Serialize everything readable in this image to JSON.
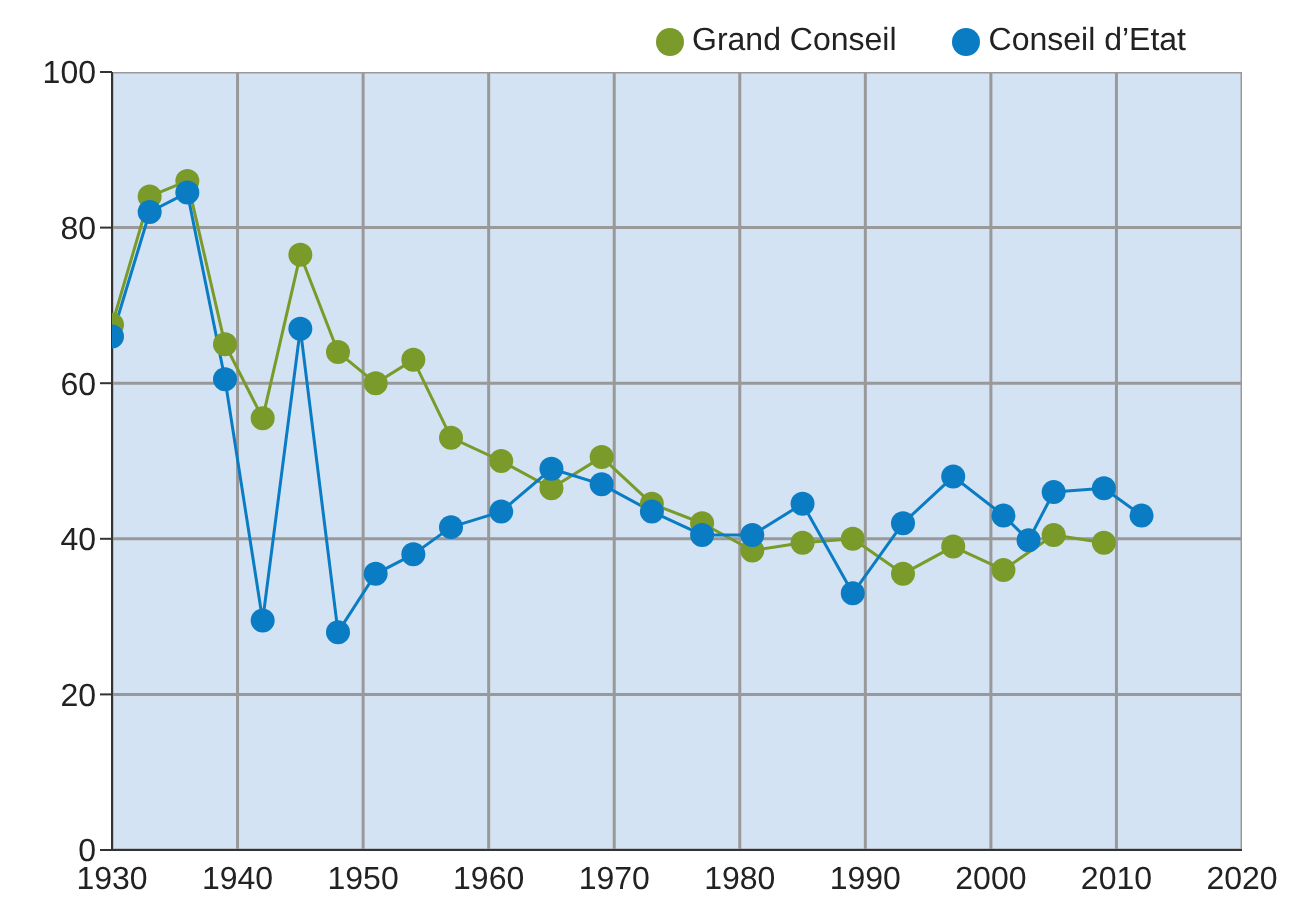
{
  "chart_data": {
    "type": "line",
    "xlim": [
      1930,
      2020
    ],
    "xticks": [
      1930,
      1940,
      1950,
      1960,
      1970,
      1980,
      1990,
      2000,
      2010,
      2020
    ],
    "ylim": [
      0,
      100
    ],
    "yticks": [
      0,
      20,
      40,
      60,
      80,
      100
    ],
    "grid": true,
    "legend": "top right",
    "marker": "circle",
    "line_style": "solid",
    "series": [
      {
        "name": "Grand Conseil",
        "color": "#7a9a2a",
        "x": [
          1930,
          1933,
          1936,
          1939,
          1942,
          1945,
          1948,
          1951,
          1954,
          1957,
          1961,
          1965,
          1969,
          1973,
          1977,
          1981,
          1985,
          1989,
          1993,
          1997,
          2001,
          2005,
          2009
        ],
        "values": [
          67.5,
          84,
          86,
          65,
          55.5,
          76.5,
          64,
          60,
          63,
          53,
          50,
          46.5,
          50.5,
          44.5,
          42,
          38.5,
          39.5,
          40,
          35.5,
          39,
          36,
          40.5,
          39.5
        ]
      },
      {
        "name": "Conseil d’Etat",
        "color": "#0a7cc4",
        "x": [
          1930,
          1933,
          1936,
          1939,
          1942,
          1945,
          1948,
          1951,
          1954,
          1957,
          1961,
          1965,
          1969,
          1973,
          1977,
          1981,
          1985,
          1989,
          1993,
          1997,
          2001,
          2003,
          2005,
          2009,
          2012
        ],
        "values": [
          66,
          82,
          84.5,
          60.5,
          29.5,
          67,
          28,
          35.5,
          38,
          41.5,
          43.5,
          49,
          47,
          43.5,
          40.5,
          40.5,
          44.5,
          33,
          42,
          48,
          43,
          39.8,
          46,
          46.5,
          43
        ]
      }
    ]
  }
}
